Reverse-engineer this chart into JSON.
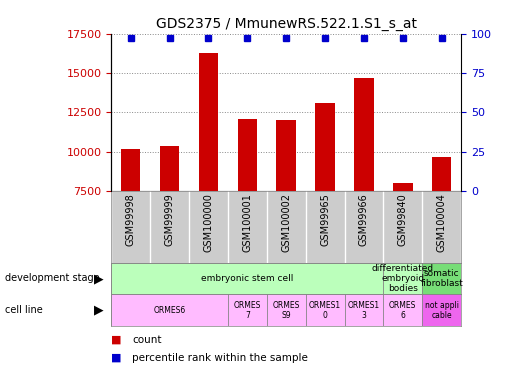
{
  "title": "GDS2375 / MmunewRS.522.1.S1_s_at",
  "samples": [
    "GSM99998",
    "GSM99999",
    "GSM100000",
    "GSM100001",
    "GSM100002",
    "GSM99965",
    "GSM99966",
    "GSM99840",
    "GSM100004"
  ],
  "counts": [
    10200,
    10400,
    16300,
    12100,
    12000,
    13100,
    14700,
    8050,
    9700
  ],
  "percentiles": [
    100,
    100,
    100,
    100,
    100,
    100,
    100,
    100,
    100
  ],
  "ylim_left": [
    7500,
    17500
  ],
  "ylim_right": [
    0,
    100
  ],
  "yticks_left": [
    7500,
    10000,
    12500,
    15000,
    17500
  ],
  "yticks_right": [
    0,
    25,
    50,
    75,
    100
  ],
  "bar_color": "#cc0000",
  "percentile_color": "#0000cc",
  "bar_width": 0.5,
  "development_stage_row": {
    "groups": [
      {
        "label": "embryonic stem cell",
        "span": [
          0,
          7
        ],
        "color": "#bbffbb"
      },
      {
        "label": "differentiated\nembryoid\nbodies",
        "span": [
          7,
          8
        ],
        "color": "#bbffbb"
      },
      {
        "label": "somatic\nfibroblast",
        "span": [
          8,
          9
        ],
        "color": "#77dd77"
      }
    ]
  },
  "cell_line_row": {
    "groups": [
      {
        "label": "ORMES6",
        "span": [
          0,
          3
        ],
        "color": "#ffbbff"
      },
      {
        "label": "ORMES\n7",
        "span": [
          3,
          4
        ],
        "color": "#ffbbff"
      },
      {
        "label": "ORMES\nS9",
        "span": [
          4,
          5
        ],
        "color": "#ffbbff"
      },
      {
        "label": "ORMES1\n0",
        "span": [
          5,
          6
        ],
        "color": "#ffbbff"
      },
      {
        "label": "ORMES1\n3",
        "span": [
          6,
          7
        ],
        "color": "#ffbbff"
      },
      {
        "label": "ORMES\n6",
        "span": [
          7,
          8
        ],
        "color": "#ffbbff"
      },
      {
        "label": "not appli\ncable",
        "span": [
          8,
          9
        ],
        "color": "#ee66ee"
      }
    ]
  },
  "row_labels": [
    "development stage",
    "cell line"
  ],
  "legend_items": [
    {
      "label": "count",
      "color": "#cc0000"
    },
    {
      "label": "percentile rank within the sample",
      "color": "#0000cc"
    }
  ],
  "bg_color": "#ffffff",
  "names_bg_color": "#cccccc",
  "grid_color": "#888888",
  "tick_label_color_left": "#cc0000",
  "tick_label_color_right": "#0000cc",
  "sample_name_fontsize": 7,
  "title_fontsize": 10
}
